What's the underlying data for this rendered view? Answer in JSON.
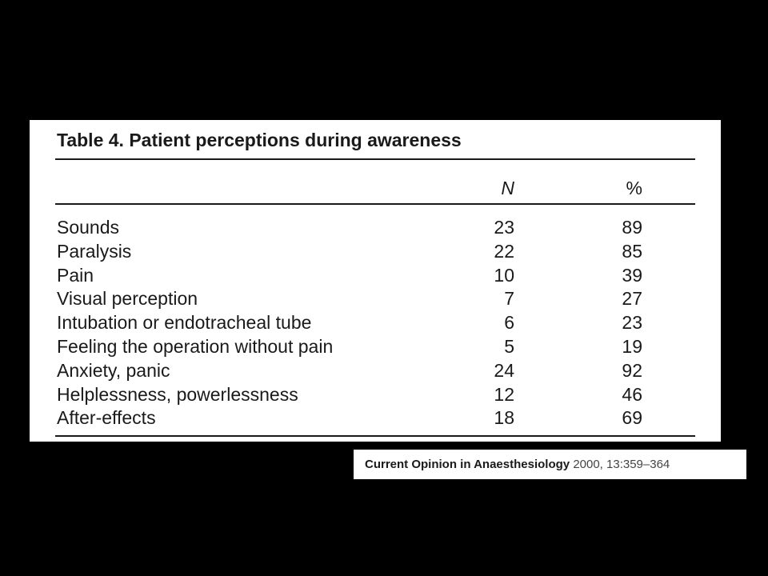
{
  "table": {
    "title": "Table 4. Patient perceptions during awareness",
    "columns": {
      "n": "N",
      "pct": "%"
    },
    "rows": [
      {
        "label": "Sounds",
        "n": "23",
        "pct": "89"
      },
      {
        "label": "Paralysis",
        "n": "22",
        "pct": "85"
      },
      {
        "label": "Pain",
        "n": "10",
        "pct": "39"
      },
      {
        "label": "Visual perception",
        "n": "7",
        "pct": "27"
      },
      {
        "label": "Intubation or endotracheal tube",
        "n": "6",
        "pct": "23"
      },
      {
        "label": "Feeling the operation without pain",
        "n": "5",
        "pct": "19"
      },
      {
        "label": "Anxiety, panic",
        "n": "24",
        "pct": "92"
      },
      {
        "label": "Helplessness, powerlessness",
        "n": "12",
        "pct": "46"
      },
      {
        "label": "After-effects",
        "n": "18",
        "pct": "69"
      }
    ]
  },
  "citation": {
    "journal": "Current Opinion in Anaesthesiology",
    "ref": "2000, 13:359–364"
  },
  "colors": {
    "background": "#000000",
    "panel": "#ffffff",
    "text": "#1a1a1a"
  }
}
